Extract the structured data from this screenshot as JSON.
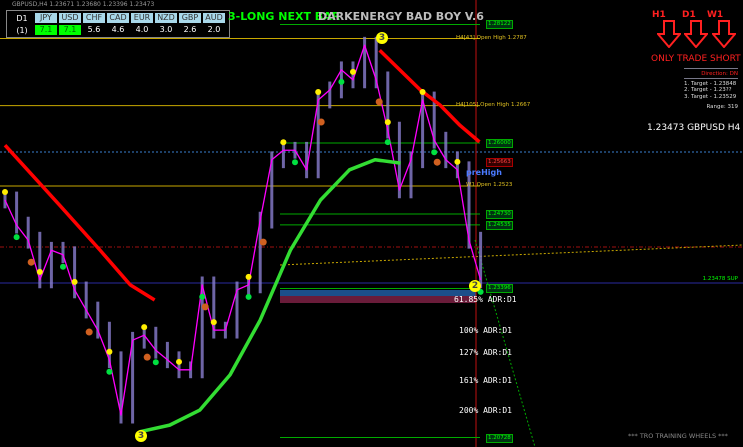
{
  "window": {
    "symbol_line": "GBPUSD,H4  1.23671 1.23680 1.23396 1.23473"
  },
  "currency_table": {
    "timeframe": "D1",
    "row_label": "(1)",
    "currencies": [
      "JPY",
      "USD",
      "CHF",
      "CAD",
      "EUR",
      "NZD",
      "GBP",
      "AUD"
    ],
    "values": [
      "7.1",
      "7.1",
      "5.6",
      "4.6",
      "4.0",
      "3.0",
      "2.6",
      "2.0"
    ],
    "highlighted": [
      true,
      true,
      false,
      false,
      false,
      false,
      false,
      false
    ],
    "highlight_color": "#00ff00"
  },
  "header": {
    "signal": "3-LONG NEXT BAR",
    "title": "DARKENERGY BAD BOY V.6"
  },
  "trend_arrows": [
    {
      "label": "H1",
      "direction": "down"
    },
    {
      "label": "D1",
      "direction": "down"
    },
    {
      "label": "W1",
      "direction": "down"
    }
  ],
  "advice": "ONLY TRADE SHORT",
  "panel": {
    "direction": "Direction: DN",
    "targets": [
      "1. Target - 1.23848",
      "2. Target - 1.23??",
      "3. Target - 1.23529"
    ],
    "range": "Range: 319"
  },
  "current": "1.23473 GBPUSD H4",
  "levels": [
    {
      "price": 1.28122,
      "label": "1.28122",
      "kind": "green-box"
    },
    {
      "price": 1.2787,
      "label": "H4[43] Open High 1.2787",
      "kind": "yellow"
    },
    {
      "price": 1.2667,
      "label": "H4[105] Open High 1.2667",
      "kind": "yellow"
    },
    {
      "price": 1.26,
      "label": "1.26000",
      "kind": "green-box"
    },
    {
      "price": 1.25663,
      "label": "1.25663",
      "kind": "red-box"
    },
    {
      "price": 1.2523,
      "label": "W1 Open 1.2523",
      "kind": "yellow"
    },
    {
      "price": 1.2473,
      "label": "1.24730",
      "kind": "green-box"
    },
    {
      "price": 1.24535,
      "label": "1.24535",
      "kind": "green-box"
    },
    {
      "price": 1.23478,
      "label": "1.23478 SUP",
      "kind": "sup"
    },
    {
      "price": 1.23396,
      "label": "1.23396",
      "kind": "green-box"
    },
    {
      "price": 1.20728,
      "label": "1.20728",
      "kind": "green-box"
    }
  ],
  "tags": {
    "prehigh": "preHigh",
    "bar_count_top": "3",
    "bar_count_bottom": "3",
    "bar_count_current": "2"
  },
  "adr": [
    "61.85% ADR:D1",
    "100% ADR:D1",
    "127% ADR:D1",
    "161% ADR:D1",
    "200% ADR:D1"
  ],
  "footer": "*** TRO TRAINING WHEELS ***",
  "colors": {
    "bg": "#000000",
    "price": "#8a7fd0",
    "fast_ma": "#ff00ff",
    "slow_ma_red": "#ff0000",
    "slow_ma_green": "#33dd33",
    "level_yellow": "#c8a800",
    "level_green": "#00aa00"
  },
  "chart_data": {
    "type": "line",
    "title": "",
    "xlabel": "",
    "ylabel": "",
    "ylim": [
      1.2005,
      1.285
    ],
    "grid": false,
    "series": [
      {
        "role": "price-close",
        "x": [
          0,
          1,
          2,
          3,
          4,
          5,
          6,
          7,
          8,
          9,
          10,
          11,
          12,
          13,
          14,
          15,
          16,
          17,
          18,
          19,
          20,
          21,
          22,
          23,
          24,
          25,
          26,
          27,
          28,
          29,
          30,
          31,
          32,
          33,
          34,
          35,
          36,
          37,
          38,
          39,
          40,
          41
        ],
        "values": [
          1.2498,
          1.2453,
          1.2426,
          1.2355,
          1.2408,
          1.24,
          1.2337,
          1.2301,
          1.2265,
          1.2212,
          1.2113,
          1.2247,
          1.2256,
          1.2229,
          1.2212,
          1.2194,
          1.2194,
          1.2346,
          1.2265,
          1.2265,
          1.2337,
          1.2346,
          1.2462,
          1.257,
          1.2587,
          1.2587,
          1.2552,
          1.2677,
          1.2695,
          1.2731,
          1.2713,
          1.2775,
          1.2713,
          1.2623,
          1.2516,
          1.257,
          1.2677,
          1.2605,
          1.257,
          1.2552,
          1.2426,
          1.2355
        ]
      },
      {
        "role": "slow-ma-red-1",
        "x": [
          0,
          4.7,
          8.2,
          10.8,
          12.9
        ],
        "values": [
          1.2596,
          1.2489,
          1.2408,
          1.2346,
          1.2319
        ]
      },
      {
        "role": "slow-ma-red-2",
        "x": [
          32.3,
          35.8,
          37.5,
          39.2,
          40.9
        ],
        "values": [
          1.2766,
          1.2695,
          1.2668,
          1.2632,
          1.2602
        ]
      },
      {
        "role": "slow-ma-green",
        "x": [
          11.6,
          14.2,
          16.8,
          19.4,
          22,
          24.6,
          27.2,
          29.7,
          31.9,
          34.1
        ],
        "values": [
          1.2083,
          1.2095,
          1.2122,
          1.2185,
          1.2283,
          1.2408,
          1.2498,
          1.2552,
          1.257,
          1.2564
        ]
      }
    ]
  }
}
